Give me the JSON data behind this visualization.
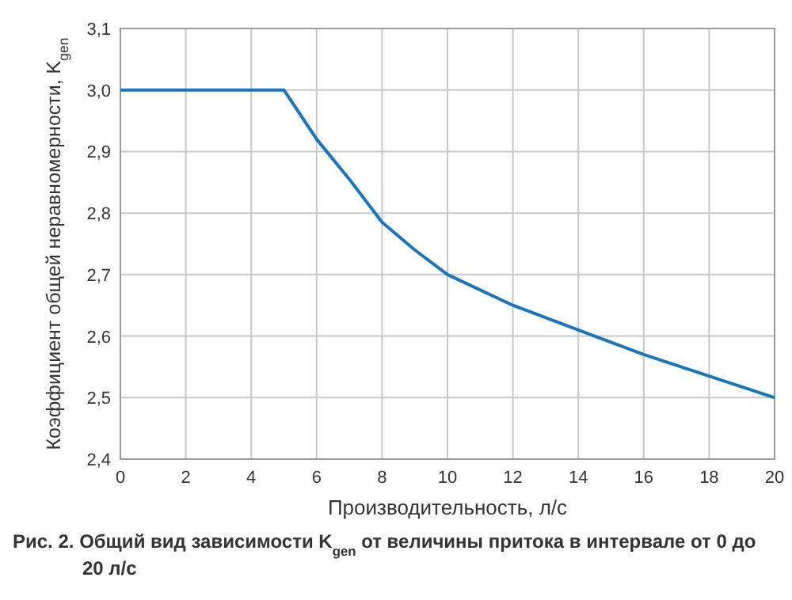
{
  "chart_data": {
    "type": "line",
    "xlabel": "Производительность, л/с",
    "ylabel": "Коэффициент общей неравномерности, K$_{gen}$",
    "x": [
      0,
      5,
      6,
      7,
      8,
      9,
      10,
      12,
      14,
      16,
      18,
      20
    ],
    "series": [
      {
        "color": "#1b75bb",
        "values": [
          3.0,
          3.0,
          2.92,
          2.855,
          2.785,
          2.74,
          2.7,
          2.65,
          2.61,
          2.57,
          2.535,
          2.5
        ]
      }
    ],
    "xlim": [
      0,
      20
    ],
    "xticks": [
      0,
      2,
      4,
      6,
      8,
      10,
      12,
      14,
      16,
      18,
      20
    ],
    "ylim": [
      2.4,
      3.1
    ],
    "yticks": [
      {
        "value": 2.4,
        "label": "2,4"
      },
      {
        "value": 2.5,
        "label": "2,5"
      },
      {
        "value": 2.6,
        "label": "2,6"
      },
      {
        "value": 2.7,
        "label": "2,7"
      },
      {
        "value": 2.8,
        "label": "2,8"
      },
      {
        "value": 2.9,
        "label": "2,9"
      },
      {
        "value": 3.0,
        "label": "3,0"
      },
      {
        "value": 3.1,
        "label": "3,1"
      }
    ],
    "grid": true,
    "marker": "none",
    "line_style": "solid",
    "annotations": [
      "Рис. 2. Общий вид зависимости K$_{gen}$ от величины притока в интервале от 0 до 20 л/с"
    ]
  }
}
